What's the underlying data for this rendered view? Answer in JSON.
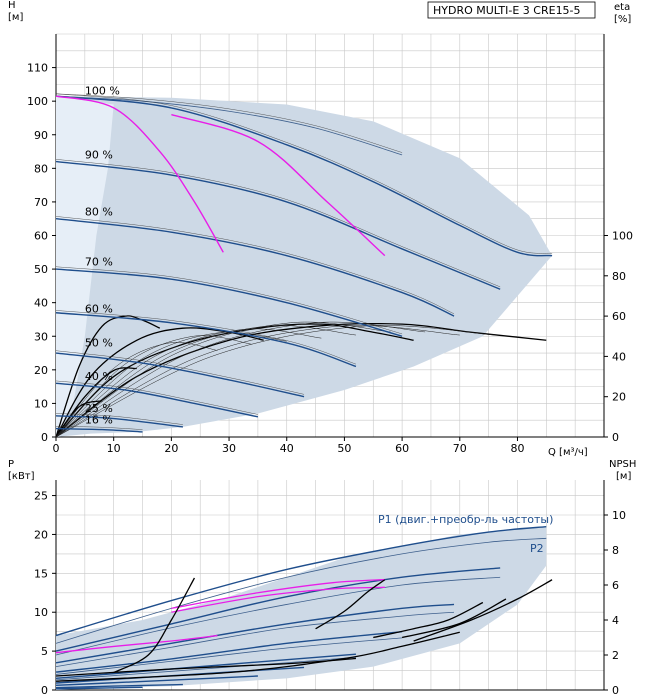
{
  "colors": {
    "envelope": "#cdd9e6",
    "envelope_light": "#e6eef7",
    "curve_blue": "#1f4e8c",
    "curve_thin": "#3d5f8c",
    "magenta": "#e81ee8",
    "black": "#000000",
    "grid": "#c8c8c8"
  },
  "chart_data": [
    {
      "type": "line",
      "name": "qh",
      "title": "HYDRO MULTI-E 3 CRE15-5",
      "ylabel": "H",
      "yunit": "[м]",
      "y2label": "eta",
      "y2unit": "[%]",
      "xunit": "Q [м³/ч]",
      "xlim": [
        0,
        95
      ],
      "ylim": [
        0,
        120
      ],
      "y2lim": [
        0,
        200
      ],
      "xticks": [
        0,
        10,
        20,
        30,
        40,
        50,
        60,
        70,
        80
      ],
      "yticks": [
        0,
        10,
        20,
        30,
        40,
        50,
        60,
        70,
        80,
        90,
        100,
        110
      ],
      "y2ticks": [
        0,
        20,
        40,
        60,
        80,
        100
      ],
      "speed_labels": [
        {
          "label": "100 %",
          "q": 5,
          "h": 102
        },
        {
          "label": "90 %",
          "q": 5,
          "h": 83
        },
        {
          "label": "80 %",
          "q": 5,
          "h": 66
        },
        {
          "label": "70 %",
          "q": 5,
          "h": 51
        },
        {
          "label": "60 %",
          "q": 5,
          "h": 37
        },
        {
          "label": "50 %",
          "q": 5,
          "h": 27
        },
        {
          "label": "40 %",
          "q": 5,
          "h": 17
        },
        {
          "label": "25 %",
          "q": 5,
          "h": 7.5
        },
        {
          "label": "16 %",
          "q": 5,
          "h": 4
        }
      ],
      "envelope": [
        [
          0,
          0
        ],
        [
          6,
          1
        ],
        [
          14,
          1.5
        ],
        [
          22,
          3
        ],
        [
          35,
          7
        ],
        [
          50,
          14
        ],
        [
          62,
          21
        ],
        [
          74,
          30
        ],
        [
          86,
          54
        ],
        [
          82,
          66
        ],
        [
          70,
          83
        ],
        [
          55,
          94
        ],
        [
          40,
          99
        ],
        [
          20,
          101
        ],
        [
          0,
          101.5
        ]
      ],
      "envelope_light_split": [
        [
          0,
          101.5
        ],
        [
          10,
          99
        ],
        [
          9,
          80
        ],
        [
          7,
          60
        ],
        [
          5,
          30
        ],
        [
          3,
          10
        ],
        [
          0,
          0
        ]
      ],
      "qh_curves": [
        {
          "name": "100 %",
          "points": [
            [
              0,
              101.5
            ],
            [
              20,
              98
            ],
            [
              40,
              87
            ],
            [
              55,
              76
            ],
            [
              70,
              63
            ],
            [
              80,
              55
            ],
            [
              86,
              54
            ]
          ]
        },
        {
          "name": "100 % (upper)",
          "points": [
            [
              0,
              101.5
            ],
            [
              15,
              100
            ],
            [
              30,
              97
            ],
            [
              45,
              92
            ],
            [
              60,
              84
            ]
          ]
        },
        {
          "name": "90 %",
          "points": [
            [
              0,
              82
            ],
            [
              20,
              78
            ],
            [
              40,
              70
            ],
            [
              60,
              56
            ],
            [
              77,
              44
            ]
          ]
        },
        {
          "name": "80 %",
          "points": [
            [
              0,
              65
            ],
            [
              20,
              61
            ],
            [
              40,
              54
            ],
            [
              60,
              43
            ],
            [
              69,
              36
            ]
          ]
        },
        {
          "name": "70 %",
          "points": [
            [
              0,
              50
            ],
            [
              20,
              47
            ],
            [
              40,
              40
            ],
            [
              60,
              30
            ]
          ]
        },
        {
          "name": "60 %",
          "points": [
            [
              0,
              37
            ],
            [
              20,
              34
            ],
            [
              40,
              28
            ],
            [
              52,
              21
            ]
          ]
        },
        {
          "name": "50 %",
          "points": [
            [
              0,
              25
            ],
            [
              15,
              22
            ],
            [
              30,
              17
            ],
            [
              43,
              12
            ]
          ]
        },
        {
          "name": "40 %",
          "points": [
            [
              0,
              16
            ],
            [
              12,
              14
            ],
            [
              24,
              10
            ],
            [
              35,
              6
            ]
          ]
        },
        {
          "name": "25 %",
          "points": [
            [
              0,
              6.3
            ],
            [
              10,
              5.5
            ],
            [
              22,
              3
            ]
          ]
        },
        {
          "name": "16 %",
          "points": [
            [
              0,
              2.5
            ],
            [
              8,
              2.2
            ],
            [
              15,
              1.5
            ]
          ]
        }
      ],
      "system_curves": [
        {
          "name": "magenta-1",
          "points": [
            [
              0,
              101.5
            ],
            [
              10,
              98
            ],
            [
              18,
              85
            ],
            [
              24,
              70
            ],
            [
              29,
              55
            ]
          ]
        },
        {
          "name": "magenta-2",
          "points": [
            [
              20,
              96
            ],
            [
              35,
              88
            ],
            [
              47,
              70
            ],
            [
              57,
              54
            ]
          ]
        }
      ],
      "eta_curves": [
        {
          "name": "eta-1",
          "points": [
            [
              0,
              0
            ],
            [
              4,
              35
            ],
            [
              8,
              55
            ],
            [
              12,
              60
            ],
            [
              15,
              58
            ],
            [
              18,
              54
            ]
          ]
        },
        {
          "name": "eta-2",
          "points": [
            [
              0,
              0
            ],
            [
              6,
              30
            ],
            [
              14,
              48
            ],
            [
              22,
              54
            ],
            [
              30,
              52
            ],
            [
              36,
              48
            ]
          ]
        },
        {
          "name": "eta-3",
          "points": [
            [
              0,
              0
            ],
            [
              10,
              30
            ],
            [
              22,
              46
            ],
            [
              35,
              54
            ],
            [
              46,
              56
            ],
            [
              55,
              52
            ],
            [
              62,
              48
            ]
          ]
        },
        {
          "name": "eta-4",
          "points": [
            [
              0,
              0
            ],
            [
              14,
              30
            ],
            [
              30,
              48
            ],
            [
              45,
              55
            ],
            [
              60,
              56
            ],
            [
              72,
              52
            ],
            [
              85,
              48
            ]
          ]
        },
        {
          "name": "eta-5",
          "points": [
            [
              0,
              0
            ],
            [
              5,
              20
            ],
            [
              10,
              33
            ],
            [
              14,
              34
            ]
          ]
        },
        {
          "name": "eta-6",
          "points": [
            [
              0,
              0
            ],
            [
              4,
              15
            ],
            [
              8,
              18
            ]
          ]
        }
      ]
    },
    {
      "type": "line",
      "name": "power",
      "ylabel": "P",
      "yunit": "[кВт]",
      "y2label": "NPSH",
      "y2unit": "[м]",
      "xlim": [
        0,
        95
      ],
      "ylim": [
        0,
        27
      ],
      "y2lim": [
        0,
        12
      ],
      "yticks": [
        0,
        5,
        10,
        15,
        20,
        25
      ],
      "y2ticks": [
        0,
        2,
        4,
        6,
        8,
        10
      ],
      "label_p1": "P1 (двиг.+преобр-ль частоты)",
      "label_p2": "P2",
      "envelope": [
        [
          0,
          0
        ],
        [
          20,
          0.5
        ],
        [
          40,
          1.5
        ],
        [
          55,
          3
        ],
        [
          70,
          6
        ],
        [
          80,
          11
        ],
        [
          85,
          16
        ],
        [
          85,
          21
        ],
        [
          70,
          20
        ],
        [
          50,
          17
        ],
        [
          30,
          12
        ],
        [
          15,
          9
        ],
        [
          0,
          7
        ]
      ],
      "power_curves": [
        {
          "name": "P1-100",
          "points": [
            [
              0,
              7
            ],
            [
              20,
              11.5
            ],
            [
              40,
              15.5
            ],
            [
              60,
              18.5
            ],
            [
              75,
              20.3
            ],
            [
              85,
              21
            ]
          ]
        },
        {
          "name": "P2-100",
          "points": [
            [
              0,
              6
            ],
            [
              20,
              10.5
            ],
            [
              40,
              14.5
            ],
            [
              60,
              17.5
            ],
            [
              75,
              19
            ],
            [
              85,
              19.5
            ]
          ]
        },
        {
          "name": "P1-90",
          "points": [
            [
              0,
              5
            ],
            [
              20,
              8.5
            ],
            [
              40,
              12
            ],
            [
              60,
              14.5
            ],
            [
              77,
              15.7
            ]
          ]
        },
        {
          "name": "P2-90",
          "points": [
            [
              0,
              4.5
            ],
            [
              20,
              8
            ],
            [
              40,
              11
            ],
            [
              60,
              13.5
            ],
            [
              77,
              14.5
            ]
          ]
        },
        {
          "name": "P1-80",
          "points": [
            [
              0,
              3.5
            ],
            [
              20,
              6
            ],
            [
              40,
              8.5
            ],
            [
              60,
              10.5
            ],
            [
              69,
              11
            ]
          ]
        },
        {
          "name": "P2-80",
          "points": [
            [
              0,
              3
            ],
            [
              20,
              5.5
            ],
            [
              40,
              8
            ],
            [
              60,
              9.5
            ],
            [
              69,
              10
            ]
          ]
        },
        {
          "name": "P1-70",
          "points": [
            [
              0,
              2.3
            ],
            [
              20,
              4
            ],
            [
              40,
              6
            ],
            [
              60,
              7.5
            ]
          ]
        },
        {
          "name": "P2-70",
          "points": [
            [
              0,
              2
            ],
            [
              20,
              3.7
            ],
            [
              40,
              5.4
            ],
            [
              60,
              6.7
            ]
          ]
        },
        {
          "name": "P1-60",
          "points": [
            [
              0,
              1.5
            ],
            [
              20,
              2.7
            ],
            [
              40,
              3.9
            ],
            [
              52,
              4.6
            ]
          ]
        },
        {
          "name": "P2-60",
          "points": [
            [
              0,
              1.3
            ],
            [
              20,
              2.4
            ],
            [
              40,
              3.5
            ],
            [
              52,
              4.2
            ]
          ]
        },
        {
          "name": "P1-50",
          "points": [
            [
              0,
              0.9
            ],
            [
              15,
              1.6
            ],
            [
              30,
              2.3
            ],
            [
              43,
              2.9
            ]
          ]
        },
        {
          "name": "P1-40",
          "points": [
            [
              0,
              0.6
            ],
            [
              12,
              1
            ],
            [
              24,
              1.4
            ],
            [
              35,
              1.8
            ]
          ]
        },
        {
          "name": "P1-25",
          "points": [
            [
              0,
              0.3
            ],
            [
              10,
              0.5
            ],
            [
              22,
              0.7
            ]
          ]
        },
        {
          "name": "P1-16",
          "points": [
            [
              0,
              0.15
            ],
            [
              8,
              0.25
            ],
            [
              15,
              0.35
            ]
          ]
        }
      ],
      "magenta_curves": [
        {
          "name": "mag-1",
          "points": [
            [
              0,
              4.8
            ],
            [
              10,
              5.6
            ],
            [
              20,
              6.3
            ],
            [
              28,
              7
            ]
          ]
        },
        {
          "name": "mag-2",
          "points": [
            [
              20,
              10.5
            ],
            [
              35,
              12.5
            ],
            [
              48,
              13.8
            ],
            [
              57,
              14.2
            ]
          ]
        },
        {
          "name": "mag-3",
          "points": [
            [
              20,
              10
            ],
            [
              35,
              12
            ],
            [
              48,
              13
            ],
            [
              57,
              13.2
            ]
          ]
        }
      ],
      "npsh_curves": [
        {
          "name": "npsh-1",
          "points": [
            [
              10,
              1
            ],
            [
              16,
              2
            ],
            [
              20,
              4
            ],
            [
              24,
              6.4
            ]
          ]
        },
        {
          "name": "npsh-2",
          "points": [
            [
              45,
              3.5
            ],
            [
              50,
              4.5
            ],
            [
              54,
              5.6
            ],
            [
              57,
              6.3
            ]
          ]
        },
        {
          "name": "npsh-3",
          "points": [
            [
              55,
              3
            ],
            [
              62,
              3.5
            ],
            [
              68,
              4
            ],
            [
              74,
              5
            ]
          ]
        },
        {
          "name": "npsh-4",
          "points": [
            [
              60,
              3
            ],
            [
              70,
              3.8
            ],
            [
              78,
              5.2
            ]
          ]
        },
        {
          "name": "npsh-5",
          "points": [
            [
              62,
              2.8
            ],
            [
              72,
              4
            ],
            [
              80,
              5.2
            ],
            [
              86,
              6.3
            ]
          ]
        },
        {
          "name": "npsh-6",
          "points": [
            [
              0,
              0.5
            ],
            [
              30,
              1
            ],
            [
              50,
              1.8
            ],
            [
              60,
              2.5
            ],
            [
              70,
              3.3
            ]
          ]
        },
        {
          "name": "npsh-7",
          "points": [
            [
              0,
              0.8
            ],
            [
              20,
              1.2
            ],
            [
              40,
              1.5
            ],
            [
              52,
              1.8
            ]
          ]
        }
      ]
    }
  ]
}
